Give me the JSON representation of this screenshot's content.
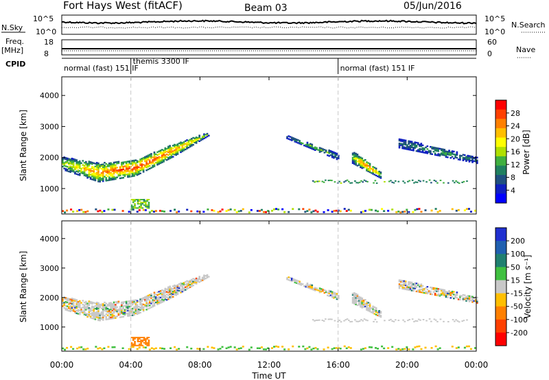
{
  "header": {
    "station": "Fort Hays West (fitACF)",
    "beam": "Beam 03",
    "date": "05/Jun/2016"
  },
  "top_panels": {
    "nsky_label": "N.Sky",
    "nsky_ticks": [
      "10^5",
      "10^0"
    ],
    "nsearch_label": "N.Search",
    "nsearch_ticks": [
      "10^5",
      "10^0"
    ],
    "freq_label": "Freq.",
    "freq_unit": "[MHz]",
    "freq_ticks": [
      "18",
      "8"
    ],
    "nave_label": "Nave",
    "nave_ticks": [
      "60",
      "0"
    ],
    "cpid_label": "CPID",
    "cpid_segments": [
      {
        "label": "normal (fast) 151 IF",
        "start_hour": 0
      },
      {
        "label": "themis 3300 IF",
        "start_hour": 4.0
      },
      {
        "label": "normal (fast) 151 IF",
        "start_hour": 16.0
      }
    ]
  },
  "power_colorbar": {
    "label": "Power [dB]",
    "ticks": [
      "28",
      "24",
      "20",
      "16",
      "12",
      "8",
      "4"
    ],
    "colors": [
      "#ff0000",
      "#ff4000",
      "#ff8000",
      "#ffbf00",
      "#ffff00",
      "#b0e000",
      "#40b040",
      "#208060",
      "#205080",
      "#1020c0",
      "#0000ff"
    ]
  },
  "velocity_colorbar": {
    "label": "Velocity [m s⁻¹]",
    "ticks": [
      "200",
      "100",
      "50",
      "15",
      "-15",
      "-50",
      "-100",
      "-200"
    ],
    "colors": [
      "#2030d0",
      "#2060b0",
      "#208070",
      "#40c040",
      "#c8c8c8",
      "#ffbf00",
      "#ff8000",
      "#ff4000",
      "#ff0000"
    ]
  },
  "x_axis": {
    "label": "Time UT",
    "ticks": [
      "00:00",
      "04:00",
      "08:00",
      "12:00",
      "16:00",
      "20:00",
      "00:00"
    ]
  },
  "chart_data": [
    {
      "type": "heatmap",
      "name": "power",
      "ylabel": "Slant Range [km]",
      "xlabel": "Time UT",
      "xlim": [
        0,
        24
      ],
      "ylim": [
        180,
        4600
      ],
      "yticks": [
        1000,
        2000,
        3000,
        4000
      ],
      "xticks": [
        "00:00",
        "04:00",
        "08:00",
        "12:00",
        "16:00",
        "20:00",
        "00:00"
      ],
      "colorbar_range": [
        0,
        30
      ],
      "echo_bands": [
        {
          "t_start": 0.0,
          "t_end": 8.5,
          "range_start_km": [
            1600,
            1200,
            1400,
            2000,
            2700
          ],
          "range_end_km": [
            2000,
            1800,
            1900,
            2400,
            2800
          ],
          "peak_db": 28
        },
        {
          "t_start": 13.0,
          "t_end": 16.0,
          "range_start_km": [
            2600,
            1900
          ],
          "range_end_km": [
            2700,
            2100
          ],
          "peak_db": 14
        },
        {
          "t_start": 16.8,
          "t_end": 18.5,
          "range_start_km": [
            1800,
            1300
          ],
          "range_end_km": [
            2200,
            1500
          ],
          "peak_db": 26
        },
        {
          "t_start": 19.5,
          "t_end": 24.0,
          "range_start_km": [
            2300,
            1800
          ],
          "range_end_km": [
            2600,
            2000
          ],
          "peak_db": 12
        }
      ]
    },
    {
      "type": "heatmap",
      "name": "velocity",
      "ylabel": "Slant Range [km]",
      "xlabel": "Time UT",
      "xlim": [
        0,
        24
      ],
      "ylim": [
        180,
        4600
      ],
      "yticks": [
        1000,
        2000,
        3000,
        4000
      ],
      "xticks": [
        "00:00",
        "04:00",
        "08:00",
        "12:00",
        "16:00",
        "20:00",
        "00:00"
      ],
      "colorbar_range": [
        -200,
        200
      ],
      "dominant_velocity_bin": "-15 to 15"
    }
  ]
}
